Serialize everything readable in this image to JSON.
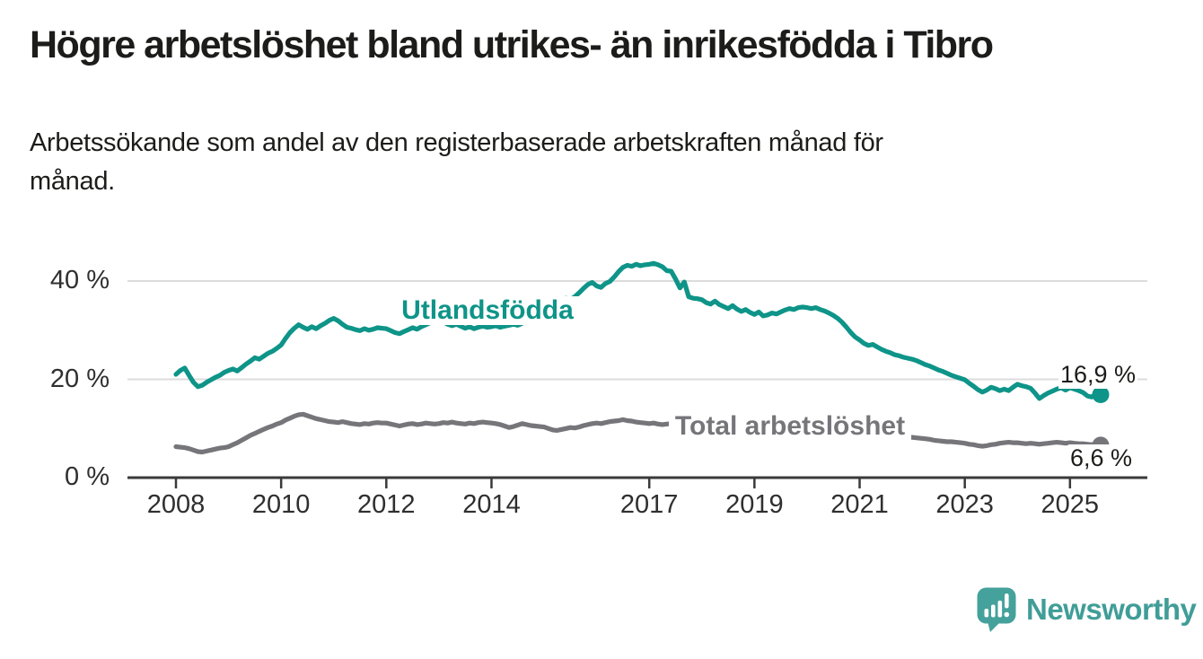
{
  "header": {
    "title": "Högre arbetslöshet bland utrikes- än inrikesfödda i Tibro",
    "subtitle_line1": "Arbetssökande som andel av den registerbaserade arbetskraften månad för",
    "subtitle_line2": "månad."
  },
  "footer": {
    "logo_text": "Newsworthy"
  },
  "colors": {
    "teal_line": "#0e9488",
    "gray_line": "#75757a",
    "axis": "#3a3a3a",
    "gridline": "#dcdcdc",
    "logo_teal": "#45a19b",
    "text": "#1c1c1a"
  },
  "chart_data": {
    "type": "line",
    "title": "Högre arbetslöshet bland utrikes- än inrikesfödda i Tibro",
    "subtitle": "Arbetssökande som andel av den registerbaserade arbetskraften månad för månad.",
    "x_unit": "month",
    "x_start": "2008-01",
    "x_end": "2025-08",
    "x_tick_labels": [
      "2008",
      "2010",
      "2012",
      "2014",
      "2017",
      "2019",
      "2021",
      "2023",
      "2025"
    ],
    "y_ticks": [
      0,
      20,
      40
    ],
    "y_tick_labels": [
      "0 %",
      "20 %",
      "40 %"
    ],
    "ylim": [
      0,
      45
    ],
    "grid": "horizontal",
    "legend_position": "inline-labels",
    "series": [
      {
        "name": "Utlandsfödda",
        "color": "#0e9488",
        "end_value": 16.9,
        "end_label": "16,9 %",
        "values": [
          21.0,
          21.8,
          22.3,
          20.8,
          19.4,
          18.5,
          18.8,
          19.4,
          19.9,
          20.4,
          20.8,
          21.4,
          21.8,
          22.1,
          21.7,
          22.4,
          23.1,
          23.7,
          24.4,
          24.1,
          24.7,
          25.3,
          25.7,
          26.3,
          27.0,
          28.3,
          29.5,
          30.4,
          31.1,
          30.6,
          30.2,
          30.7,
          30.3,
          30.9,
          31.4,
          32.0,
          32.4,
          31.9,
          31.2,
          30.6,
          30.4,
          30.1,
          29.9,
          30.3,
          30.0,
          30.2,
          30.5,
          30.4,
          30.3,
          29.9,
          29.5,
          29.3,
          29.7,
          30.1,
          30.5,
          30.2,
          30.7,
          31.1,
          31.5,
          31.9,
          32.1,
          31.7,
          31.2,
          30.9,
          31.2,
          30.8,
          30.4,
          30.7,
          30.3,
          30.6,
          30.8,
          30.6,
          30.7,
          30.9,
          30.6,
          30.8,
          31.0,
          31.2,
          31.0,
          31.4,
          31.7,
          32.0,
          32.3,
          32.6,
          33.0,
          33.8,
          34.6,
          35.4,
          36.0,
          36.5,
          36.2,
          36.8,
          37.6,
          38.5,
          39.3,
          39.7,
          39.0,
          38.7,
          39.5,
          39.9,
          40.8,
          41.9,
          42.8,
          43.2,
          43.0,
          43.4,
          43.1,
          43.3,
          43.4,
          43.6,
          43.3,
          42.9,
          42.1,
          42.0,
          40.4,
          38.6,
          39.8,
          36.8,
          36.5,
          36.4,
          36.2,
          35.6,
          35.3,
          35.9,
          35.2,
          34.8,
          34.4,
          35.0,
          34.3,
          33.8,
          34.2,
          33.6,
          33.2,
          33.7,
          32.9,
          33.1,
          33.5,
          33.3,
          33.7,
          34.1,
          34.4,
          34.2,
          34.6,
          34.7,
          34.6,
          34.4,
          34.6,
          34.2,
          33.9,
          33.5,
          33.0,
          32.4,
          31.6,
          30.6,
          29.5,
          28.6,
          28.0,
          27.3,
          26.9,
          27.1,
          26.6,
          26.1,
          25.7,
          25.4,
          25.0,
          24.8,
          24.5,
          24.3,
          24.1,
          23.8,
          23.4,
          23.0,
          22.7,
          22.3,
          21.9,
          21.6,
          21.2,
          20.8,
          20.5,
          20.2,
          19.9,
          19.2,
          18.6,
          17.9,
          17.4,
          17.8,
          18.4,
          18.1,
          17.7,
          18.0,
          17.7,
          18.4,
          19.0,
          18.7,
          18.5,
          18.2,
          17.2,
          16.1,
          16.7,
          17.2,
          17.6,
          18.0,
          18.3,
          17.8,
          18.3,
          18.0,
          17.7,
          17.3,
          16.6,
          16.4,
          17.1,
          16.9
        ]
      },
      {
        "name": "Total arbetslöshet",
        "color": "#75757a",
        "end_value": 6.6,
        "end_label": "6,6 %",
        "values": [
          6.3,
          6.2,
          6.1,
          5.9,
          5.6,
          5.3,
          5.2,
          5.4,
          5.6,
          5.8,
          6.0,
          6.1,
          6.3,
          6.7,
          7.1,
          7.6,
          8.1,
          8.6,
          9.0,
          9.4,
          9.8,
          10.2,
          10.5,
          10.9,
          11.2,
          11.7,
          12.1,
          12.5,
          12.8,
          12.9,
          12.6,
          12.3,
          12.0,
          11.8,
          11.6,
          11.4,
          11.3,
          11.2,
          11.4,
          11.2,
          11.0,
          10.9,
          10.8,
          11.0,
          10.9,
          11.1,
          11.2,
          11.1,
          11.1,
          10.9,
          10.7,
          10.5,
          10.7,
          10.9,
          11.0,
          10.8,
          10.9,
          11.1,
          11.0,
          10.9,
          11.0,
          11.2,
          11.1,
          11.3,
          11.1,
          11.0,
          10.9,
          11.1,
          11.0,
          11.2,
          11.3,
          11.2,
          11.1,
          11.0,
          10.8,
          10.5,
          10.2,
          10.4,
          10.7,
          11.0,
          10.8,
          10.6,
          10.5,
          10.4,
          10.3,
          10.0,
          9.7,
          9.6,
          9.8,
          10.0,
          10.2,
          10.1,
          10.3,
          10.6,
          10.8,
          11.0,
          11.1,
          11.0,
          11.2,
          11.4,
          11.5,
          11.6,
          11.8,
          11.6,
          11.5,
          11.3,
          11.2,
          11.1,
          11.0,
          11.1,
          10.9,
          10.8,
          10.9,
          11.0,
          10.9,
          10.8,
          10.7,
          10.6,
          10.5,
          10.6,
          10.4,
          10.3,
          10.1,
          10.0,
          9.9,
          9.8,
          9.7,
          9.8,
          9.7,
          9.6,
          9.5,
          9.4,
          9.4,
          9.3,
          9.2,
          9.2,
          9.1,
          9.0,
          9.0,
          9.1,
          9.1,
          9.2,
          9.3,
          9.4,
          9.6,
          9.9,
          10.2,
          10.5,
          10.6,
          10.6,
          10.5,
          10.4,
          10.2,
          10.0,
          9.8,
          9.6,
          9.4,
          9.2,
          9.0,
          8.9,
          8.8,
          8.7,
          8.6,
          8.5,
          8.4,
          8.3,
          8.2,
          8.2,
          8.2,
          8.1,
          8.0,
          7.9,
          7.8,
          7.6,
          7.5,
          7.4,
          7.3,
          7.3,
          7.2,
          7.1,
          7.0,
          6.8,
          6.7,
          6.5,
          6.4,
          6.5,
          6.7,
          6.8,
          7.0,
          7.1,
          7.2,
          7.1,
          7.1,
          7.0,
          6.9,
          7.0,
          6.9,
          6.8,
          6.9,
          7.0,
          7.1,
          7.2,
          7.1,
          7.0,
          7.1,
          7.0,
          6.9,
          6.9,
          6.8,
          6.7,
          6.9,
          6.6
        ]
      }
    ]
  }
}
